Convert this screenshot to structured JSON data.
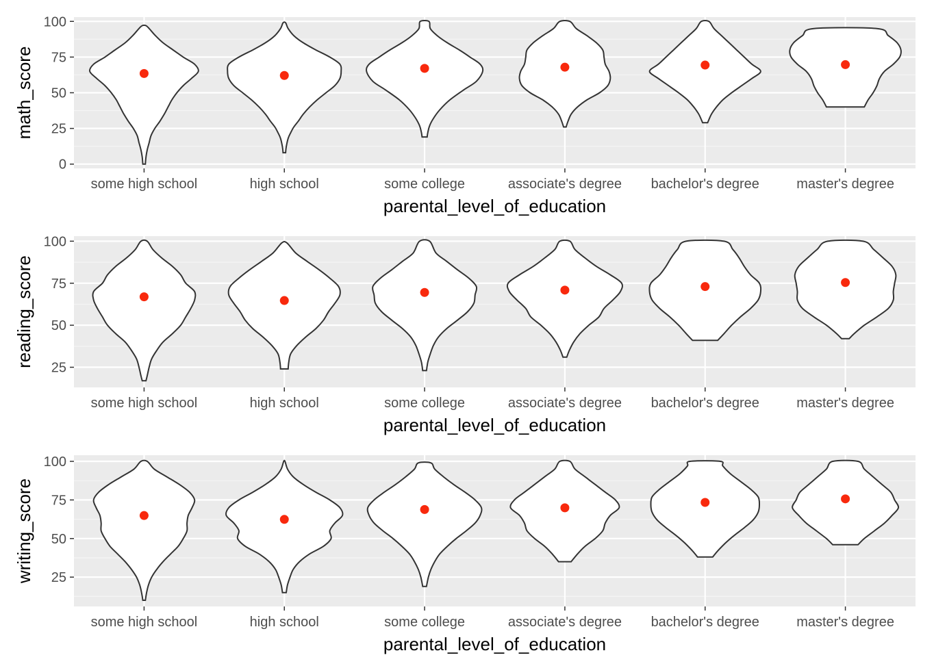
{
  "colors": {
    "panel_background": "#ebebeb",
    "grid_major": "#ffffff",
    "grid_minor": "#f5f5f5",
    "violin_fill": "#ffffff",
    "violin_outline": "#333333",
    "mean_point": "#f8290d",
    "tick_text": "#4d4d4d",
    "title_text": "#000000"
  },
  "chart_data": [
    {
      "type": "violin",
      "xlabel": "parental_level_of_education",
      "ylabel": "math_score",
      "ylim": [
        -3,
        103
      ],
      "yticks": [
        0,
        25,
        50,
        75,
        100
      ],
      "categories": [
        "some high school",
        "high school",
        "some college",
        "associate's degree",
        "bachelor's degree",
        "master's degree"
      ],
      "grid": true,
      "mean_markers": [
        63.5,
        62.1,
        67.1,
        67.9,
        69.4,
        69.7
      ],
      "violins": [
        {
          "y": [
            0,
            5,
            10,
            15,
            20,
            25,
            30,
            35,
            40,
            45,
            50,
            55,
            60,
            65,
            70,
            75,
            80,
            85,
            90,
            95,
            97
          ],
          "width": [
            0.02,
            0.03,
            0.05,
            0.08,
            0.11,
            0.17,
            0.25,
            0.32,
            0.38,
            0.44,
            0.52,
            0.62,
            0.75,
            0.86,
            0.8,
            0.62,
            0.46,
            0.3,
            0.18,
            0.08,
            0.03
          ]
        },
        {
          "y": [
            8,
            12,
            18,
            22,
            26,
            30,
            35,
            40,
            45,
            50,
            55,
            60,
            65,
            70,
            75,
            80,
            85,
            90,
            95,
            99
          ],
          "width": [
            0.02,
            0.03,
            0.06,
            0.1,
            0.15,
            0.22,
            0.3,
            0.4,
            0.52,
            0.66,
            0.8,
            0.88,
            0.9,
            0.88,
            0.72,
            0.5,
            0.3,
            0.15,
            0.06,
            0.02
          ]
        },
        {
          "y": [
            19,
            22,
            27,
            32,
            38,
            45,
            52,
            58,
            65,
            70,
            75,
            80,
            85,
            90,
            95,
            100
          ],
          "width": [
            0.04,
            0.05,
            0.08,
            0.14,
            0.24,
            0.4,
            0.62,
            0.82,
            0.92,
            0.88,
            0.72,
            0.55,
            0.36,
            0.2,
            0.09,
            0.07
          ]
        },
        {
          "y": [
            26,
            30,
            35,
            40,
            45,
            50,
            55,
            60,
            65,
            70,
            75,
            80,
            85,
            90,
            95,
            100
          ],
          "width": [
            0.02,
            0.05,
            0.1,
            0.2,
            0.35,
            0.55,
            0.68,
            0.72,
            0.7,
            0.64,
            0.62,
            0.6,
            0.5,
            0.35,
            0.18,
            0.08
          ]
        },
        {
          "y": [
            29,
            35,
            40,
            45,
            50,
            55,
            60,
            65,
            70,
            75,
            80,
            85,
            90,
            95,
            100
          ],
          "width": [
            0.04,
            0.1,
            0.18,
            0.28,
            0.42,
            0.58,
            0.74,
            0.88,
            0.74,
            0.62,
            0.5,
            0.38,
            0.26,
            0.14,
            0.06
          ]
        },
        {
          "y": [
            40,
            45,
            50,
            55,
            60,
            65,
            70,
            75,
            80,
            85,
            90,
            95
          ],
          "width": [
            0.3,
            0.36,
            0.44,
            0.5,
            0.54,
            0.62,
            0.76,
            0.86,
            0.88,
            0.82,
            0.68,
            0.5
          ]
        }
      ]
    },
    {
      "type": "violin",
      "xlabel": "parental_level_of_education",
      "ylabel": "reading_score",
      "ylim": [
        13,
        103
      ],
      "yticks": [
        25,
        50,
        75,
        100
      ],
      "categories": [
        "some high school",
        "high school",
        "some college",
        "associate's degree",
        "bachelor's degree",
        "master's degree"
      ],
      "grid": true,
      "mean_markers": [
        66.9,
        64.7,
        69.5,
        70.9,
        73.0,
        75.4
      ],
      "violins": [
        {
          "y": [
            17,
            20,
            25,
            30,
            35,
            40,
            45,
            50,
            55,
            60,
            65,
            70,
            75,
            80,
            85,
            90,
            95,
            100
          ],
          "width": [
            0.03,
            0.05,
            0.08,
            0.12,
            0.2,
            0.3,
            0.45,
            0.58,
            0.66,
            0.74,
            0.8,
            0.8,
            0.66,
            0.58,
            0.45,
            0.28,
            0.14,
            0.05
          ]
        },
        {
          "y": [
            24,
            28,
            33,
            38,
            43,
            48,
            53,
            58,
            63,
            68,
            73,
            78,
            83,
            88,
            93,
            99
          ],
          "width": [
            0.06,
            0.07,
            0.1,
            0.2,
            0.34,
            0.5,
            0.62,
            0.7,
            0.8,
            0.88,
            0.86,
            0.72,
            0.55,
            0.36,
            0.18,
            0.04
          ]
        },
        {
          "y": [
            23,
            28,
            33,
            38,
            43,
            48,
            53,
            58,
            63,
            68,
            73,
            78,
            83,
            88,
            93,
            100
          ],
          "width": [
            0.03,
            0.05,
            0.09,
            0.14,
            0.22,
            0.35,
            0.52,
            0.68,
            0.78,
            0.8,
            0.82,
            0.7,
            0.52,
            0.35,
            0.18,
            0.08
          ]
        },
        {
          "y": [
            31,
            35,
            40,
            45,
            50,
            55,
            60,
            65,
            70,
            75,
            80,
            85,
            90,
            95,
            100
          ],
          "width": [
            0.03,
            0.07,
            0.14,
            0.24,
            0.38,
            0.54,
            0.62,
            0.76,
            0.88,
            0.9,
            0.72,
            0.5,
            0.32,
            0.16,
            0.08
          ]
        },
        {
          "y": [
            41,
            45,
            50,
            55,
            60,
            65,
            70,
            75,
            80,
            85,
            90,
            95,
            100
          ],
          "width": [
            0.2,
            0.3,
            0.42,
            0.56,
            0.72,
            0.84,
            0.88,
            0.86,
            0.72,
            0.62,
            0.54,
            0.44,
            0.3
          ]
        },
        {
          "y": [
            42,
            45,
            50,
            55,
            60,
            65,
            70,
            75,
            80,
            85,
            90,
            95,
            100
          ],
          "width": [
            0.06,
            0.14,
            0.3,
            0.5,
            0.68,
            0.76,
            0.76,
            0.78,
            0.8,
            0.74,
            0.6,
            0.45,
            0.28
          ]
        }
      ]
    },
    {
      "type": "violin",
      "xlabel": "parental_level_of_education",
      "ylabel": "writing_score",
      "ylim": [
        6,
        104
      ],
      "yticks": [
        25,
        50,
        75,
        100
      ],
      "categories": [
        "some high school",
        "high school",
        "some college",
        "associate's degree",
        "bachelor's degree",
        "master's degree"
      ],
      "grid": true,
      "mean_markers": [
        64.9,
        62.4,
        68.8,
        69.9,
        73.4,
        75.7
      ],
      "violins": [
        {
          "y": [
            10,
            15,
            20,
            25,
            30,
            35,
            40,
            45,
            50,
            55,
            60,
            65,
            70,
            75,
            80,
            85,
            90,
            95,
            100
          ],
          "width": [
            0.02,
            0.04,
            0.07,
            0.12,
            0.2,
            0.3,
            0.42,
            0.54,
            0.62,
            0.68,
            0.68,
            0.7,
            0.76,
            0.8,
            0.72,
            0.56,
            0.36,
            0.16,
            0.05
          ]
        },
        {
          "y": [
            15,
            20,
            25,
            30,
            35,
            40,
            45,
            50,
            55,
            60,
            65,
            70,
            75,
            80,
            85,
            90,
            95,
            100
          ],
          "width": [
            0.03,
            0.05,
            0.09,
            0.14,
            0.24,
            0.4,
            0.62,
            0.74,
            0.72,
            0.8,
            0.92,
            0.88,
            0.72,
            0.5,
            0.3,
            0.14,
            0.05,
            0.01
          ]
        },
        {
          "y": [
            19,
            25,
            30,
            35,
            40,
            45,
            50,
            55,
            60,
            65,
            70,
            75,
            80,
            85,
            90,
            95,
            99
          ],
          "width": [
            0.03,
            0.06,
            0.1,
            0.16,
            0.24,
            0.36,
            0.5,
            0.66,
            0.8,
            0.88,
            0.9,
            0.8,
            0.64,
            0.46,
            0.3,
            0.16,
            0.1
          ]
        },
        {
          "y": [
            35,
            40,
            45,
            50,
            55,
            60,
            65,
            70,
            75,
            80,
            85,
            90,
            95,
            100
          ],
          "width": [
            0.1,
            0.2,
            0.32,
            0.48,
            0.6,
            0.64,
            0.72,
            0.86,
            0.8,
            0.64,
            0.48,
            0.32,
            0.16,
            0.08
          ]
        },
        {
          "y": [
            38,
            42,
            47,
            52,
            57,
            62,
            67,
            72,
            77,
            82,
            87,
            92,
            97,
            100
          ],
          "width": [
            0.12,
            0.2,
            0.32,
            0.46,
            0.62,
            0.76,
            0.84,
            0.86,
            0.84,
            0.72,
            0.56,
            0.4,
            0.28,
            0.24
          ]
        },
        {
          "y": [
            46,
            50,
            55,
            60,
            65,
            70,
            75,
            80,
            85,
            90,
            95,
            100
          ],
          "width": [
            0.2,
            0.3,
            0.46,
            0.62,
            0.74,
            0.84,
            0.78,
            0.72,
            0.58,
            0.44,
            0.3,
            0.2
          ]
        }
      ]
    }
  ]
}
